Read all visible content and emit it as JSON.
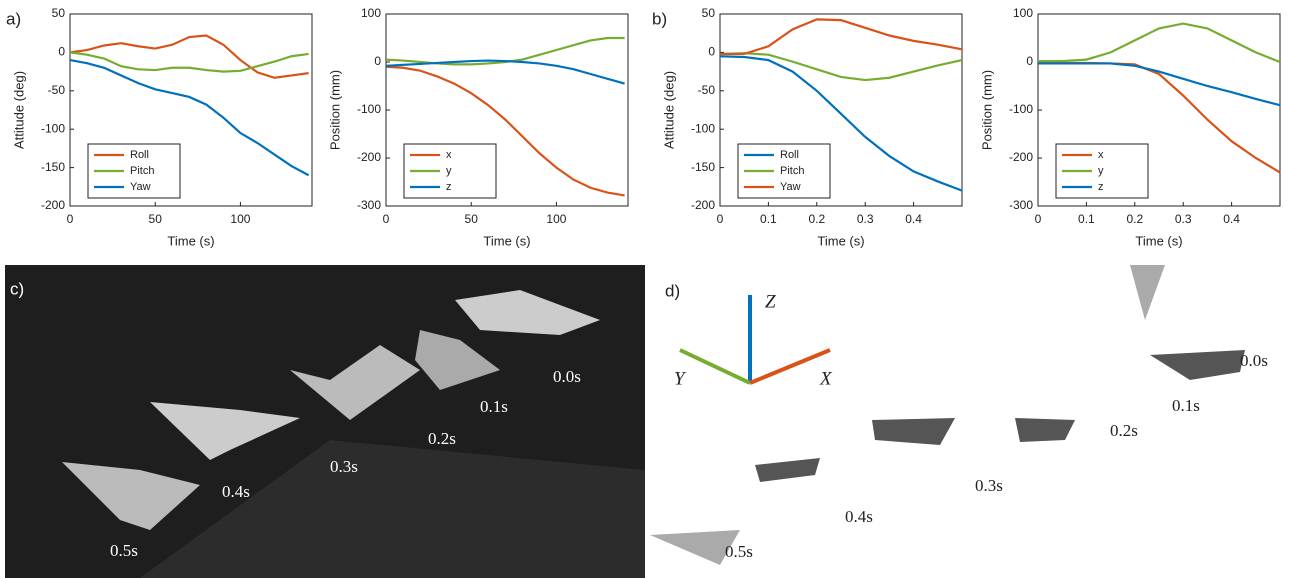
{
  "chart_data": [
    {
      "type": "line",
      "panel": "a)",
      "ylabel": "Attitude (deg)",
      "xlabel": "Time (s)",
      "x": [
        0,
        10,
        20,
        30,
        40,
        50,
        60,
        70,
        80,
        90,
        100,
        110,
        120,
        130,
        140
      ],
      "xlim": [
        0,
        142
      ],
      "xticks": [
        0,
        50,
        100
      ],
      "ylim": [
        -200,
        50
      ],
      "yticks": [
        -200,
        -150,
        -100,
        -50,
        0,
        50
      ],
      "legend": "lower left",
      "series": [
        {
          "name": "Roll",
          "color": "#d95319",
          "values": [
            0,
            3,
            9,
            12,
            8,
            5,
            10,
            20,
            22,
            10,
            -10,
            -26,
            -33,
            -30,
            -27
          ]
        },
        {
          "name": "Pitch",
          "color": "#77ac30",
          "values": [
            0,
            -3,
            -8,
            -18,
            -22,
            -23,
            -20,
            -20,
            -23,
            -25,
            -24,
            -18,
            -12,
            -5,
            -2
          ]
        },
        {
          "name": "Yaw",
          "color": "#0072bd",
          "values": [
            -10,
            -14,
            -20,
            -30,
            -40,
            -48,
            -53,
            -58,
            -68,
            -85,
            -105,
            -118,
            -133,
            -148,
            -160
          ]
        }
      ]
    },
    {
      "type": "line",
      "ylabel": "Position (mm)",
      "xlabel": "Time (s)",
      "x": [
        0,
        10,
        20,
        30,
        40,
        50,
        60,
        70,
        80,
        90,
        100,
        110,
        120,
        130,
        140
      ],
      "xlim": [
        0,
        142
      ],
      "xticks": [
        0,
        50,
        100
      ],
      "ylim": [
        -300,
        100
      ],
      "yticks": [
        -300,
        -200,
        -100,
        0,
        100
      ],
      "legend": "lower left",
      "series": [
        {
          "name": "x",
          "color": "#d95319",
          "values": [
            -10,
            -12,
            -18,
            -30,
            -45,
            -65,
            -90,
            -120,
            -155,
            -190,
            -220,
            -245,
            -262,
            -272,
            -278
          ]
        },
        {
          "name": "y",
          "color": "#77ac30",
          "values": [
            5,
            3,
            0,
            -3,
            -5,
            -5,
            -3,
            0,
            5,
            15,
            25,
            35,
            45,
            50,
            50
          ]
        },
        {
          "name": "z",
          "color": "#0072bd",
          "values": [
            -8,
            -6,
            -4,
            -2,
            0,
            2,
            3,
            2,
            0,
            -3,
            -8,
            -15,
            -25,
            -35,
            -45
          ]
        }
      ]
    },
    {
      "type": "line",
      "panel": "b)",
      "ylabel": "Attitude (deg)",
      "xlabel": "Time (s)",
      "x": [
        0,
        0.05,
        0.1,
        0.15,
        0.2,
        0.25,
        0.3,
        0.35,
        0.4,
        0.45,
        0.5
      ],
      "xlim": [
        0,
        0.5
      ],
      "xticks": [
        0,
        0.1,
        0.2,
        0.3,
        0.4
      ],
      "ylim": [
        -200,
        50
      ],
      "yticks": [
        -200,
        -150,
        -100,
        -50,
        0,
        50
      ],
      "legend": "lower left",
      "series": [
        {
          "name": "Roll",
          "color": "#0072bd",
          "values": [
            -5,
            -6,
            -10,
            -25,
            -50,
            -80,
            -110,
            -135,
            -155,
            -168,
            -180
          ]
        },
        {
          "name": "Pitch",
          "color": "#77ac30",
          "values": [
            -2,
            -1,
            -3,
            -12,
            -22,
            -32,
            -36,
            -33,
            -25,
            -17,
            -10
          ]
        },
        {
          "name": "Yaw",
          "color": "#d95319",
          "values": [
            -2,
            -2,
            8,
            30,
            43,
            42,
            32,
            22,
            15,
            10,
            4
          ]
        }
      ]
    },
    {
      "type": "line",
      "ylabel": "Position (mm)",
      "xlabel": "Time (s)",
      "x": [
        0,
        0.05,
        0.1,
        0.15,
        0.2,
        0.25,
        0.3,
        0.35,
        0.4,
        0.45,
        0.5
      ],
      "xlim": [
        0,
        0.5
      ],
      "xticks": [
        0,
        0.1,
        0.2,
        0.3,
        0.4
      ],
      "ylim": [
        -300,
        100
      ],
      "yticks": [
        -300,
        -200,
        -100,
        0,
        100
      ],
      "legend": "lower left",
      "series": [
        {
          "name": "x",
          "color": "#d95319",
          "values": [
            -2,
            -2,
            -2,
            -3,
            -5,
            -25,
            -70,
            -120,
            -165,
            -200,
            -230
          ]
        },
        {
          "name": "y",
          "color": "#77ac30",
          "values": [
            2,
            2,
            5,
            20,
            45,
            70,
            80,
            70,
            45,
            20,
            0
          ]
        },
        {
          "name": "z",
          "color": "#0072bd",
          "values": [
            -3,
            -3,
            -3,
            -3,
            -8,
            -20,
            -35,
            -50,
            -63,
            -77,
            -90
          ]
        }
      ]
    }
  ],
  "photo": {
    "panel": "c)",
    "times": [
      "0.0s",
      "0.1s",
      "0.2s",
      "0.3s",
      "0.4s",
      "0.5s"
    ]
  },
  "render": {
    "panel": "d)",
    "axes": [
      "X",
      "Y",
      "Z"
    ],
    "times": [
      "0.0s",
      "0.1s",
      "0.2s",
      "0.3s",
      "0.4s",
      "0.5s"
    ]
  }
}
